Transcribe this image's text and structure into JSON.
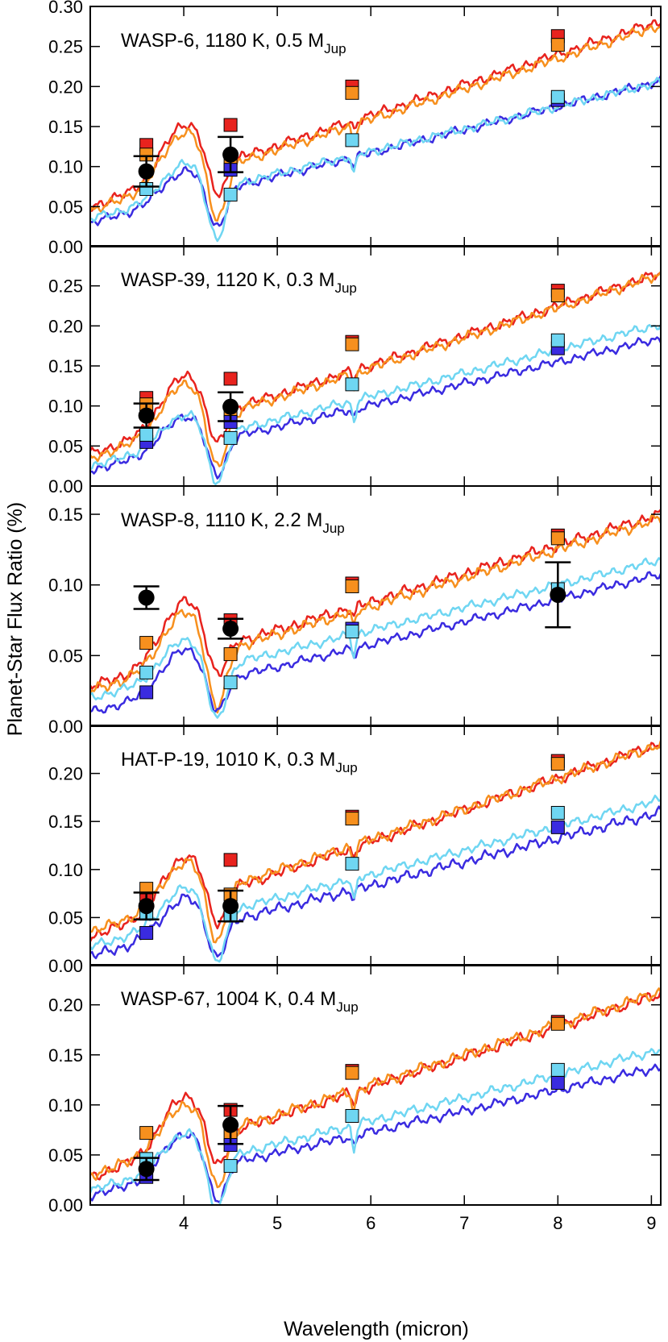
{
  "figure": {
    "ylabel": "Planet-Star Flux Ratio (%)",
    "xlabel": "Wavelength (micron)",
    "x_ticks": [
      4,
      5,
      6,
      7,
      8,
      9
    ],
    "xlim": [
      3.0,
      9.1
    ]
  },
  "chart_data": [
    {
      "type": "line",
      "label_main": "WASP-6, 1180 K, 0.5 M",
      "label_sub": "Jup",
      "ylim": [
        0.0,
        0.3
      ],
      "y_ticks": [
        "0.00",
        "0.05",
        "0.10",
        "0.15",
        "0.20",
        "0.25",
        "0.30"
      ],
      "observed": [
        {
          "x": 3.6,
          "y": 0.094,
          "err": 0.019
        },
        {
          "x": 4.5,
          "y": 0.115,
          "err": 0.022
        }
      ],
      "series": [
        {
          "name": "model-red",
          "color": "#e8231e",
          "params": {
            "base": 0.05,
            "slope": 0.038,
            "bump": 0.065,
            "dip": 0.055,
            "bias": 0.0,
            "noise": 0.008,
            "dip58": 0.01
          }
        },
        {
          "name": "model-orange",
          "color": "#f7901e",
          "params": {
            "base": 0.045,
            "slope": 0.038,
            "bump": 0.06,
            "dip": 0.08,
            "bias": -0.005,
            "noise": 0.008,
            "dip58": 0.02
          }
        },
        {
          "name": "model-blue",
          "color": "#3a2be0",
          "params": {
            "base": 0.03,
            "slope": 0.029,
            "bump": 0.035,
            "dip": 0.055,
            "bias": -0.003,
            "noise": 0.007,
            "dip58": 0.01
          }
        },
        {
          "name": "model-cyan",
          "color": "#6fd6f2",
          "params": {
            "base": 0.035,
            "slope": 0.028,
            "bump": 0.04,
            "dip": 0.075,
            "bias": 0.005,
            "noise": 0.007,
            "dip58": 0.025
          }
        }
      ],
      "squares": [
        {
          "x": 3.6,
          "y": 0.127,
          "color": "#e8231e"
        },
        {
          "x": 3.6,
          "y": 0.115,
          "color": "#f7901e"
        },
        {
          "x": 3.6,
          "y": 0.072,
          "color": "#6fd6f2"
        },
        {
          "x": 4.5,
          "y": 0.152,
          "color": "#e8231e"
        },
        {
          "x": 4.5,
          "y": 0.103,
          "color": "#f7901e"
        },
        {
          "x": 4.5,
          "y": 0.096,
          "color": "#3a2be0"
        },
        {
          "x": 4.5,
          "y": 0.065,
          "color": "#6fd6f2"
        },
        {
          "x": 5.8,
          "y": 0.2,
          "color": "#e8231e"
        },
        {
          "x": 5.8,
          "y": 0.192,
          "color": "#f7901e"
        },
        {
          "x": 5.8,
          "y": 0.133,
          "color": "#6fd6f2"
        },
        {
          "x": 8.0,
          "y": 0.263,
          "color": "#e8231e"
        },
        {
          "x": 8.0,
          "y": 0.252,
          "color": "#f7901e"
        },
        {
          "x": 8.0,
          "y": 0.183,
          "color": "#3a2be0"
        },
        {
          "x": 8.0,
          "y": 0.187,
          "color": "#6fd6f2"
        }
      ]
    },
    {
      "type": "line",
      "label_main": "WASP-39, 1120 K, 0.3 M",
      "label_sub": "Jup",
      "ylim": [
        0.0,
        0.3
      ],
      "y_ticks": [
        "0.00",
        "0.05",
        "0.10",
        "0.15",
        "0.20",
        "0.25"
      ],
      "observed": [
        {
          "x": 3.6,
          "y": 0.088,
          "err": 0.015
        },
        {
          "x": 4.5,
          "y": 0.099,
          "err": 0.018
        }
      ],
      "series": [
        {
          "name": "model-red",
          "color": "#e8231e",
          "params": {
            "base": 0.04,
            "slope": 0.037,
            "bump": 0.06,
            "dip": 0.055,
            "bias": 0.0,
            "noise": 0.008,
            "dip58": 0.01
          }
        },
        {
          "name": "model-orange",
          "color": "#f7901e",
          "params": {
            "base": 0.035,
            "slope": 0.0375,
            "bump": 0.055,
            "dip": 0.08,
            "bias": -0.005,
            "noise": 0.008,
            "dip58": 0.02
          }
        },
        {
          "name": "model-blue",
          "color": "#3a2be0",
          "params": {
            "base": 0.02,
            "slope": 0.027,
            "bump": 0.04,
            "dip": 0.055,
            "bias": -0.008,
            "noise": 0.007,
            "dip58": 0.01
          }
        },
        {
          "name": "model-cyan",
          "color": "#6fd6f2",
          "params": {
            "base": 0.025,
            "slope": 0.029,
            "bump": 0.035,
            "dip": 0.07,
            "bias": 0.005,
            "noise": 0.007,
            "dip58": 0.025
          }
        }
      ],
      "squares": [
        {
          "x": 3.6,
          "y": 0.11,
          "color": "#e8231e"
        },
        {
          "x": 3.6,
          "y": 0.102,
          "color": "#f7901e"
        },
        {
          "x": 3.6,
          "y": 0.055,
          "color": "#3a2be0"
        },
        {
          "x": 3.6,
          "y": 0.064,
          "color": "#6fd6f2"
        },
        {
          "x": 4.5,
          "y": 0.134,
          "color": "#e8231e"
        },
        {
          "x": 4.5,
          "y": 0.094,
          "color": "#f7901e"
        },
        {
          "x": 4.5,
          "y": 0.08,
          "color": "#3a2be0"
        },
        {
          "x": 4.5,
          "y": 0.06,
          "color": "#6fd6f2"
        },
        {
          "x": 5.8,
          "y": 0.18,
          "color": "#e8231e"
        },
        {
          "x": 5.8,
          "y": 0.177,
          "color": "#f7901e"
        },
        {
          "x": 5.8,
          "y": 0.127,
          "color": "#6fd6f2"
        },
        {
          "x": 8.0,
          "y": 0.244,
          "color": "#e8231e"
        },
        {
          "x": 8.0,
          "y": 0.238,
          "color": "#f7901e"
        },
        {
          "x": 8.0,
          "y": 0.172,
          "color": "#3a2be0"
        },
        {
          "x": 8.0,
          "y": 0.182,
          "color": "#6fd6f2"
        }
      ]
    },
    {
      "type": "line",
      "label_main": "WASP-8, 1110 K, 2.2 M",
      "label_sub": "Jup",
      "ylim": [
        0.0,
        0.17
      ],
      "y_ticks": [
        "0.00",
        "0.05",
        "0.10",
        "0.15"
      ],
      "observed": [
        {
          "x": 3.6,
          "y": 0.091,
          "err": 0.008
        },
        {
          "x": 4.5,
          "y": 0.069,
          "err": 0.007
        },
        {
          "x": 8.0,
          "y": 0.093,
          "err": 0.023
        }
      ],
      "series": [
        {
          "name": "model-red",
          "color": "#e8231e",
          "params": {
            "base": 0.028,
            "slope": 0.02,
            "bump": 0.04,
            "dip": 0.03,
            "bias": 0.0,
            "noise": 0.005,
            "dip58": 0.008
          }
        },
        {
          "name": "model-orange",
          "color": "#f7901e",
          "params": {
            "base": 0.025,
            "slope": 0.02,
            "bump": 0.035,
            "dip": 0.05,
            "bias": -0.003,
            "noise": 0.005,
            "dip58": 0.012
          }
        },
        {
          "name": "model-blue",
          "color": "#3a2be0",
          "params": {
            "base": 0.01,
            "slope": 0.016,
            "bump": 0.028,
            "dip": 0.03,
            "bias": -0.008,
            "noise": 0.004,
            "dip58": 0.006
          }
        },
        {
          "name": "model-cyan",
          "color": "#6fd6f2",
          "params": {
            "base": 0.02,
            "slope": 0.016,
            "bump": 0.025,
            "dip": 0.045,
            "bias": 0.003,
            "noise": 0.004,
            "dip58": 0.015
          }
        }
      ],
      "squares": [
        {
          "x": 3.6,
          "y": 0.059,
          "color": "#f7901e"
        },
        {
          "x": 3.6,
          "y": 0.038,
          "color": "#6fd6f2"
        },
        {
          "x": 3.6,
          "y": 0.024,
          "color": "#3a2be0"
        },
        {
          "x": 4.5,
          "y": 0.075,
          "color": "#e8231e"
        },
        {
          "x": 4.5,
          "y": 0.051,
          "color": "#f7901e"
        },
        {
          "x": 4.5,
          "y": 0.031,
          "color": "#6fd6f2"
        },
        {
          "x": 5.8,
          "y": 0.101,
          "color": "#e8231e"
        },
        {
          "x": 5.8,
          "y": 0.099,
          "color": "#f7901e"
        },
        {
          "x": 5.8,
          "y": 0.069,
          "color": "#3a2be0"
        },
        {
          "x": 5.8,
          "y": 0.067,
          "color": "#6fd6f2"
        },
        {
          "x": 8.0,
          "y": 0.135,
          "color": "#e8231e"
        },
        {
          "x": 8.0,
          "y": 0.133,
          "color": "#f7901e"
        },
        {
          "x": 8.0,
          "y": 0.097,
          "color": "#6fd6f2"
        }
      ]
    },
    {
      "type": "line",
      "label_main": "HAT-P-19, 1010 K, 0.3 M",
      "label_sub": "Jup",
      "ylim": [
        0.0,
        0.25
      ],
      "y_ticks": [
        "0.00",
        "0.05",
        "0.10",
        "0.15",
        "0.20"
      ],
      "observed": [
        {
          "x": 3.6,
          "y": 0.062,
          "err": 0.014
        },
        {
          "x": 4.5,
          "y": 0.062,
          "err": 0.016
        }
      ],
      "series": [
        {
          "name": "model-red",
          "color": "#e8231e",
          "params": {
            "base": 0.03,
            "slope": 0.033,
            "bump": 0.05,
            "dip": 0.045,
            "bias": 0.0,
            "noise": 0.007,
            "dip58": 0.01
          }
        },
        {
          "name": "model-orange",
          "color": "#f7901e",
          "params": {
            "base": 0.035,
            "slope": 0.032,
            "bump": 0.04,
            "dip": 0.065,
            "bias": -0.003,
            "noise": 0.007,
            "dip58": 0.02
          }
        },
        {
          "name": "model-blue",
          "color": "#3a2be0",
          "params": {
            "base": 0.01,
            "slope": 0.0245,
            "bump": 0.035,
            "dip": 0.045,
            "bias": -0.01,
            "noise": 0.007,
            "dip58": 0.01
          }
        },
        {
          "name": "model-cyan",
          "color": "#6fd6f2",
          "params": {
            "base": 0.02,
            "slope": 0.025,
            "bump": 0.035,
            "dip": 0.06,
            "bias": 0.005,
            "noise": 0.006,
            "dip58": 0.025
          }
        }
      ],
      "squares": [
        {
          "x": 3.6,
          "y": 0.08,
          "color": "#f7901e"
        },
        {
          "x": 3.6,
          "y": 0.068,
          "color": "#e8231e"
        },
        {
          "x": 3.6,
          "y": 0.054,
          "color": "#6fd6f2"
        },
        {
          "x": 3.6,
          "y": 0.034,
          "color": "#3a2be0"
        },
        {
          "x": 4.5,
          "y": 0.11,
          "color": "#e8231e"
        },
        {
          "x": 4.5,
          "y": 0.074,
          "color": "#f7901e"
        },
        {
          "x": 4.5,
          "y": 0.055,
          "color": "#3a2be0"
        },
        {
          "x": 4.5,
          "y": 0.052,
          "color": "#6fd6f2"
        },
        {
          "x": 5.8,
          "y": 0.155,
          "color": "#e8231e"
        },
        {
          "x": 5.8,
          "y": 0.153,
          "color": "#f7901e"
        },
        {
          "x": 5.8,
          "y": 0.106,
          "color": "#6fd6f2"
        },
        {
          "x": 8.0,
          "y": 0.213,
          "color": "#e8231e"
        },
        {
          "x": 8.0,
          "y": 0.21,
          "color": "#f7901e"
        },
        {
          "x": 8.0,
          "y": 0.144,
          "color": "#3a2be0"
        },
        {
          "x": 8.0,
          "y": 0.159,
          "color": "#6fd6f2"
        }
      ]
    },
    {
      "type": "line",
      "label_main": "WASP-67, 1004 K, 0.4 M",
      "label_sub": "Jup",
      "ylim": [
        0.0,
        0.24
      ],
      "y_ticks": [
        "0.00",
        "0.05",
        "0.10",
        "0.15",
        "0.20"
      ],
      "observed": [
        {
          "x": 3.6,
          "y": 0.036,
          "err": 0.011
        },
        {
          "x": 4.5,
          "y": 0.08,
          "err": 0.019
        }
      ],
      "series": [
        {
          "name": "model-red",
          "color": "#e8231e",
          "params": {
            "base": 0.028,
            "slope": 0.03,
            "bump": 0.05,
            "dip": 0.045,
            "bias": -0.003,
            "noise": 0.007,
            "dip58": 0.01
          }
        },
        {
          "name": "model-orange",
          "color": "#f7901e",
          "params": {
            "base": 0.03,
            "slope": 0.03,
            "bump": 0.04,
            "dip": 0.065,
            "bias": 0.002,
            "noise": 0.007,
            "dip58": 0.02
          }
        },
        {
          "name": "model-blue",
          "color": "#3a2be0",
          "params": {
            "base": 0.01,
            "slope": 0.021,
            "bump": 0.04,
            "dip": 0.045,
            "bias": -0.005,
            "noise": 0.006,
            "dip58": 0.01
          }
        },
        {
          "name": "model-cyan",
          "color": "#6fd6f2",
          "params": {
            "base": 0.015,
            "slope": 0.023,
            "bump": 0.033,
            "dip": 0.06,
            "bias": 0.005,
            "noise": 0.006,
            "dip58": 0.025
          }
        }
      ],
      "squares": [
        {
          "x": 3.6,
          "y": 0.072,
          "color": "#f7901e"
        },
        {
          "x": 3.6,
          "y": 0.046,
          "color": "#6fd6f2"
        },
        {
          "x": 3.6,
          "y": 0.028,
          "color": "#3a2be0"
        },
        {
          "x": 4.5,
          "y": 0.095,
          "color": "#e8231e"
        },
        {
          "x": 4.5,
          "y": 0.07,
          "color": "#f7901e"
        },
        {
          "x": 4.5,
          "y": 0.06,
          "color": "#3a2be0"
        },
        {
          "x": 4.5,
          "y": 0.039,
          "color": "#6fd6f2"
        },
        {
          "x": 5.8,
          "y": 0.134,
          "color": "#e8231e"
        },
        {
          "x": 5.8,
          "y": 0.132,
          "color": "#f7901e"
        },
        {
          "x": 5.8,
          "y": 0.089,
          "color": "#6fd6f2"
        },
        {
          "x": 8.0,
          "y": 0.183,
          "color": "#e8231e"
        },
        {
          "x": 8.0,
          "y": 0.181,
          "color": "#f7901e"
        },
        {
          "x": 8.0,
          "y": 0.122,
          "color": "#3a2be0"
        },
        {
          "x": 8.0,
          "y": 0.135,
          "color": "#6fd6f2"
        }
      ]
    }
  ]
}
